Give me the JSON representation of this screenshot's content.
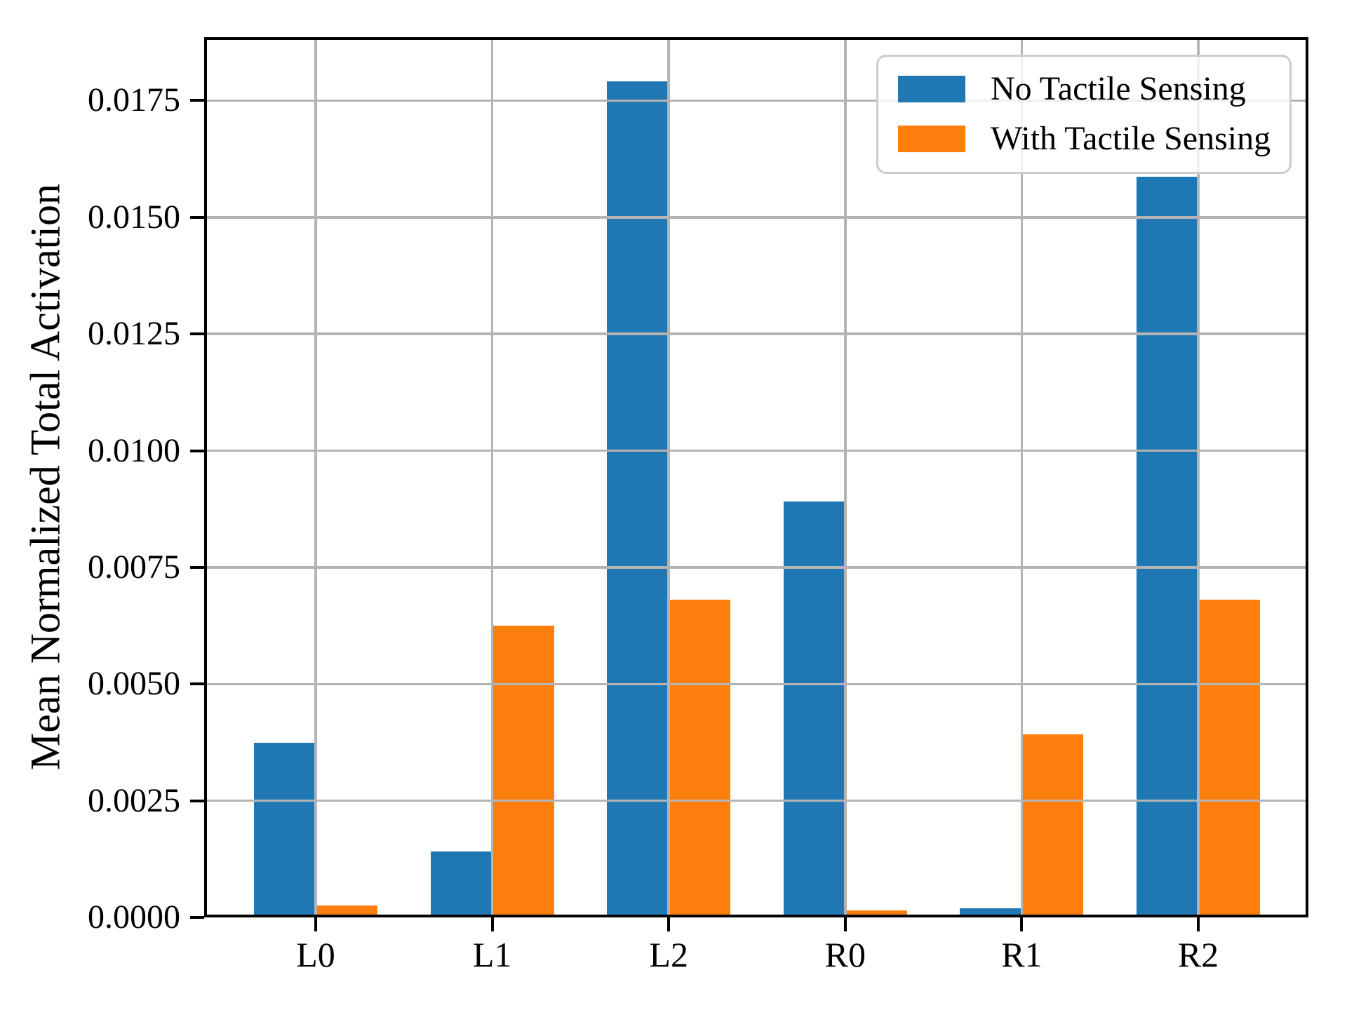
{
  "chart_data": {
    "type": "bar",
    "title": "",
    "categories": [
      "L0",
      "L1",
      "L2",
      "R0",
      "R1",
      "R2"
    ],
    "series": [
      {
        "name": "No Tactile Sensing",
        "color": "#1f77b4",
        "values": [
          0.00374,
          0.00141,
          0.01792,
          0.00891,
          0.0002,
          0.01587
        ]
      },
      {
        "name": "With Tactile Sensing",
        "color": "#ff7f0e",
        "values": [
          0.00026,
          0.00625,
          0.00681,
          0.00015,
          0.00392,
          0.00681
        ]
      }
    ],
    "xlabel": "",
    "ylabel": "Mean Normalized Total Activation",
    "ylim": [
      0,
      0.01886
    ],
    "yticks": [
      0,
      0.0025,
      0.005,
      0.0075,
      0.01,
      0.0125,
      0.015,
      0.0175
    ],
    "ytick_labels": [
      "0.0000",
      "0.0025",
      "0.0050",
      "0.0075",
      "0.0100",
      "0.0125",
      "0.0150",
      "0.0175"
    ],
    "grid": true,
    "grid_color": "#b4b4b4",
    "legend_position": "upper right",
    "bar_width": 0.35,
    "background": "#ffffff",
    "spine_color": "#000000"
  }
}
